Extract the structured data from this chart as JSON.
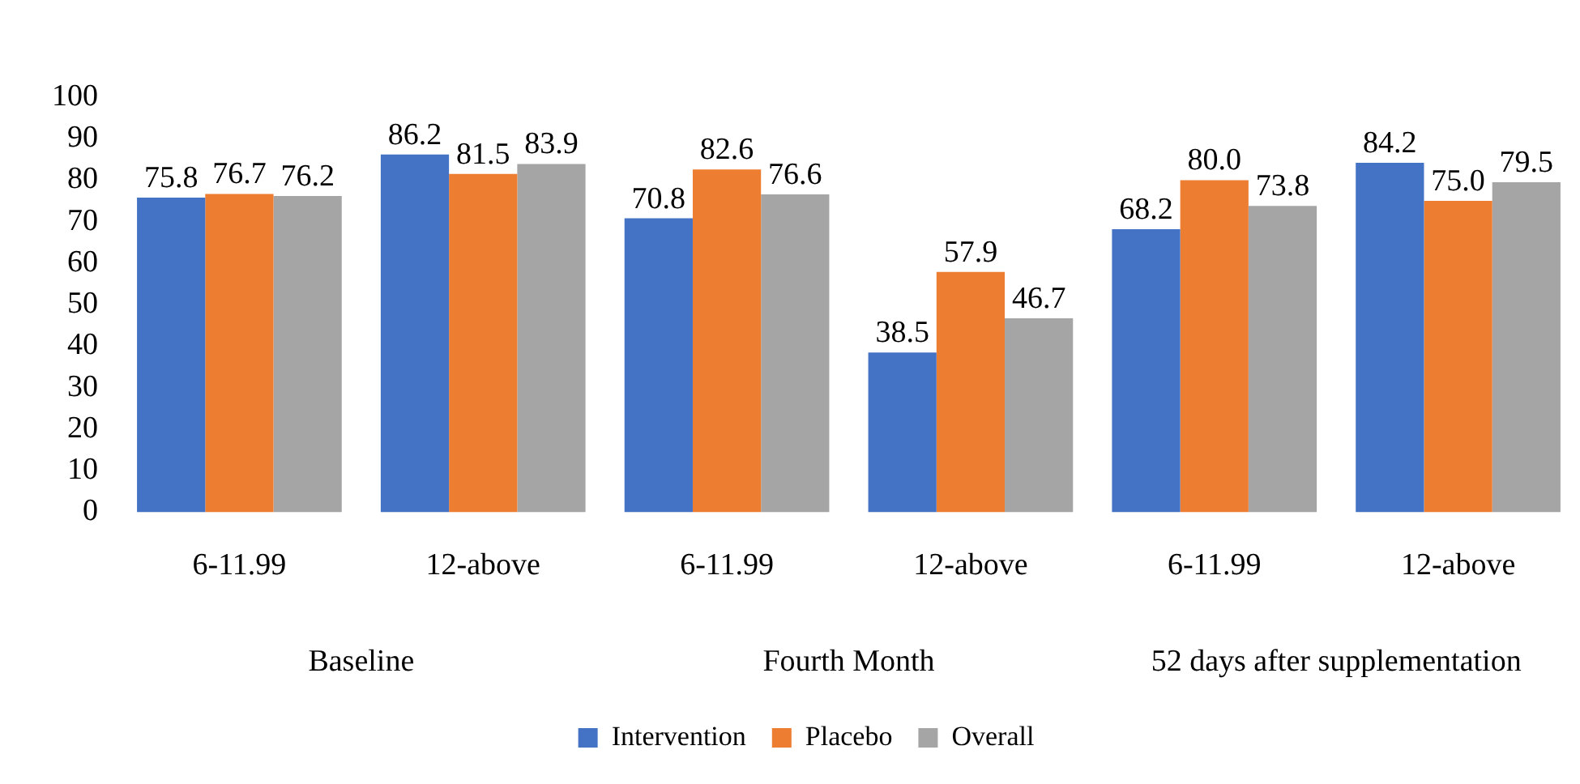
{
  "chart_data": {
    "type": "bar",
    "categories": [
      "6-11.99",
      "12-above",
      "6-11.99",
      "12-above",
      "6-11.99",
      "12-above"
    ],
    "series": [
      {
        "name": "Intervention",
        "color": "#4472c4",
        "values": [
          75.8,
          86.2,
          70.8,
          38.5,
          68.2,
          84.2
        ],
        "value_labels": [
          "75.8",
          "86.2",
          "70.8",
          "38.5",
          "68.2",
          "84.2"
        ]
      },
      {
        "name": "Placebo",
        "color": "#ed7d31",
        "values": [
          76.7,
          81.5,
          82.6,
          57.9,
          80.0,
          75.0
        ],
        "value_labels": [
          "76.7",
          "81.5",
          "82.6",
          "57.9",
          "80.0",
          "75.0"
        ]
      },
      {
        "name": "Overall",
        "color": "#a5a5a5",
        "values": [
          76.2,
          83.9,
          76.6,
          46.7,
          73.8,
          79.5
        ],
        "value_labels": [
          "76.2",
          "83.9",
          "76.6",
          "46.7",
          "73.8",
          "79.5"
        ]
      }
    ],
    "ylim": [
      0,
      100
    ],
    "yticks": [
      0,
      10,
      20,
      30,
      40,
      50,
      60,
      70,
      80,
      90,
      100
    ],
    "annotations": [
      "Baseline",
      "Fourth Month",
      "52 days after supplementation"
    ],
    "grid": false,
    "legend": "bottom"
  }
}
